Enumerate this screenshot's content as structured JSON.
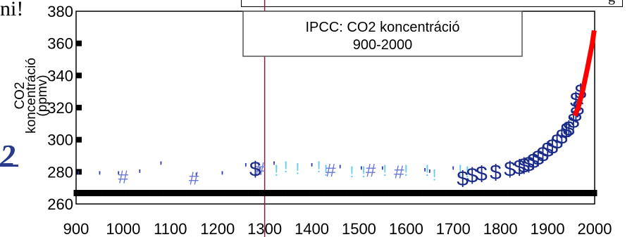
{
  "fragments": {
    "left_top": "ni!",
    "left_mid": "2",
    "top_box": "g"
  },
  "chart_data": {
    "type": "scatter",
    "title_lines": [
      "IPCC: CO2 koncentráció",
      "900-2000"
    ],
    "ylabel_lines": [
      "CO2",
      "koncentráció",
      "(ppmv)"
    ],
    "xlabel": "",
    "xlim": [
      900,
      2000
    ],
    "ylim": [
      260,
      380
    ],
    "x_ticks": [
      900,
      1000,
      1100,
      1200,
      1300,
      1400,
      1500,
      1600,
      1700,
      1800,
      1900,
      2000
    ],
    "x_tick_labels": [
      "900",
      "1000",
      "1100",
      "1200",
      "1300",
      "1400",
      "1500",
      "1600",
      "1700",
      "1800",
      "1900",
      "2000"
    ],
    "y_ticks": [
      260,
      280,
      300,
      320,
      340,
      360,
      380
    ],
    "y_tick_labels": [
      "260",
      "280",
      "300",
      "320",
      "340",
      "360",
      "380"
    ],
    "grid": false,
    "legend": "none",
    "vertical_line_x": 1300,
    "series": [
      {
        "marker": "'",
        "color": "#2b3aa8",
        "points": [
          [
            905,
            277
          ],
          [
            950,
            277
          ],
          [
            990,
            277
          ],
          [
            1035,
            278
          ],
          [
            1080,
            283
          ],
          [
            1155,
            276
          ],
          [
            1210,
            277
          ],
          [
            1260,
            282
          ],
          [
            1290,
            280
          ],
          [
            1320,
            283
          ],
          [
            1400,
            282
          ],
          [
            1460,
            281
          ],
          [
            1505,
            280
          ],
          [
            1550,
            280
          ],
          [
            1640,
            279
          ],
          [
            1650,
            278
          ],
          [
            1700,
            280
          ]
        ]
      },
      {
        "marker": "!",
        "color": "#66ccee",
        "points": [
          [
            1325,
            281
          ],
          [
            1345,
            283
          ],
          [
            1370,
            282
          ],
          [
            1415,
            283
          ],
          [
            1430,
            281
          ],
          [
            1485,
            280
          ],
          [
            1510,
            280
          ],
          [
            1555,
            281
          ],
          [
            1600,
            281
          ],
          [
            1645,
            281
          ],
          [
            1660,
            278
          ],
          [
            1715,
            281
          ],
          [
            1730,
            280
          ]
        ]
      },
      {
        "marker": "#",
        "color": "#6a78d8",
        "points": [
          [
            1000,
            277
          ],
          [
            1150,
            276
          ],
          [
            1290,
            282
          ],
          [
            1440,
            281
          ],
          [
            1525,
            281
          ],
          [
            1585,
            280
          ]
        ]
      },
      {
        "marker": "$",
        "color": "#1a2a8a",
        "points": [
          [
            1280,
            282
          ],
          [
            1720,
            276
          ],
          [
            1740,
            278
          ],
          [
            1760,
            279
          ],
          [
            1790,
            280
          ],
          [
            1820,
            282
          ],
          [
            1840,
            283
          ],
          [
            1850,
            284
          ],
          [
            1860,
            285
          ],
          [
            1870,
            287
          ],
          [
            1880,
            289
          ],
          [
            1890,
            291
          ],
          [
            1900,
            294
          ],
          [
            1910,
            296
          ],
          [
            1920,
            299
          ],
          [
            1930,
            302
          ],
          [
            1940,
            306
          ],
          [
            1945,
            307
          ],
          [
            1955,
            312
          ],
          [
            1960,
            316
          ],
          [
            1965,
            320
          ],
          [
            1960,
            325
          ],
          [
            1970,
            330
          ]
        ]
      },
      {
        "marker": "bar",
        "color": "#000000",
        "points": [
          [
            900,
            267
          ],
          [
            910,
            267
          ],
          [
            920,
            267
          ],
          [
            930,
            267
          ],
          [
            940,
            267
          ],
          [
            950,
            267
          ],
          [
            960,
            267
          ],
          [
            970,
            267
          ],
          [
            980,
            267
          ],
          [
            990,
            267
          ],
          [
            1000,
            267
          ],
          [
            1010,
            267
          ],
          [
            1020,
            267
          ],
          [
            1030,
            267
          ],
          [
            1040,
            267
          ],
          [
            1050,
            267
          ],
          [
            1060,
            267
          ],
          [
            1070,
            267
          ],
          [
            1080,
            267
          ],
          [
            1090,
            267
          ],
          [
            1100,
            267
          ],
          [
            1110,
            267
          ],
          [
            1120,
            267
          ],
          [
            1130,
            267
          ],
          [
            1140,
            267
          ],
          [
            1150,
            267
          ],
          [
            1160,
            267
          ],
          [
            1170,
            267
          ],
          [
            1180,
            267
          ],
          [
            1190,
            267
          ],
          [
            1200,
            267
          ],
          [
            1210,
            267
          ],
          [
            1220,
            267
          ],
          [
            1230,
            267
          ],
          [
            1240,
            267
          ],
          [
            1250,
            267
          ],
          [
            1260,
            267
          ],
          [
            1270,
            267
          ],
          [
            1280,
            267
          ],
          [
            1290,
            267
          ],
          [
            1300,
            267
          ],
          [
            1310,
            267
          ],
          [
            1320,
            267
          ],
          [
            1330,
            267
          ],
          [
            1340,
            267
          ],
          [
            1350,
            267
          ],
          [
            1360,
            267
          ],
          [
            1370,
            267
          ],
          [
            1380,
            267
          ],
          [
            1390,
            267
          ],
          [
            1400,
            267
          ],
          [
            1410,
            267
          ],
          [
            1420,
            267
          ],
          [
            1430,
            267
          ],
          [
            1440,
            267
          ],
          [
            1450,
            267
          ],
          [
            1460,
            267
          ],
          [
            1470,
            267
          ],
          [
            1480,
            267
          ],
          [
            1490,
            267
          ],
          [
            1500,
            267
          ],
          [
            1510,
            267
          ],
          [
            1520,
            267
          ],
          [
            1530,
            267
          ],
          [
            1540,
            267
          ],
          [
            1550,
            267
          ],
          [
            1560,
            267
          ],
          [
            1570,
            267
          ],
          [
            1580,
            267
          ],
          [
            1590,
            267
          ],
          [
            1600,
            267
          ],
          [
            1610,
            267
          ],
          [
            1620,
            267
          ],
          [
            1630,
            267
          ],
          [
            1640,
            267
          ],
          [
            1650,
            267
          ],
          [
            1660,
            267
          ],
          [
            1670,
            267
          ],
          [
            1680,
            267
          ],
          [
            1690,
            267
          ],
          [
            1700,
            267
          ],
          [
            1710,
            267
          ],
          [
            1720,
            267
          ],
          [
            1730,
            267
          ],
          [
            1740,
            267
          ],
          [
            1750,
            267
          ],
          [
            1760,
            267
          ],
          [
            1770,
            267
          ],
          [
            1780,
            267
          ],
          [
            1790,
            267
          ],
          [
            1800,
            267
          ],
          [
            1810,
            267
          ],
          [
            1820,
            267
          ],
          [
            1830,
            267
          ],
          [
            1840,
            267
          ],
          [
            1850,
            267
          ],
          [
            1860,
            267
          ],
          [
            1870,
            267
          ],
          [
            1880,
            267
          ],
          [
            1890,
            267
          ],
          [
            1900,
            267
          ],
          [
            1910,
            267
          ],
          [
            1920,
            267
          ],
          [
            1930,
            267
          ],
          [
            1940,
            267
          ],
          [
            1950,
            267
          ],
          [
            1960,
            267
          ],
          [
            1970,
            267
          ],
          [
            1980,
            267
          ],
          [
            1990,
            267
          ],
          [
            2000,
            267
          ]
        ]
      }
    ],
    "line_series": {
      "color": "#ff0000",
      "points": [
        [
          1958,
          315
        ],
        [
          1965,
          320
        ],
        [
          1975,
          331
        ],
        [
          1985,
          345
        ],
        [
          1995,
          360
        ],
        [
          1999,
          368
        ]
      ]
    }
  }
}
